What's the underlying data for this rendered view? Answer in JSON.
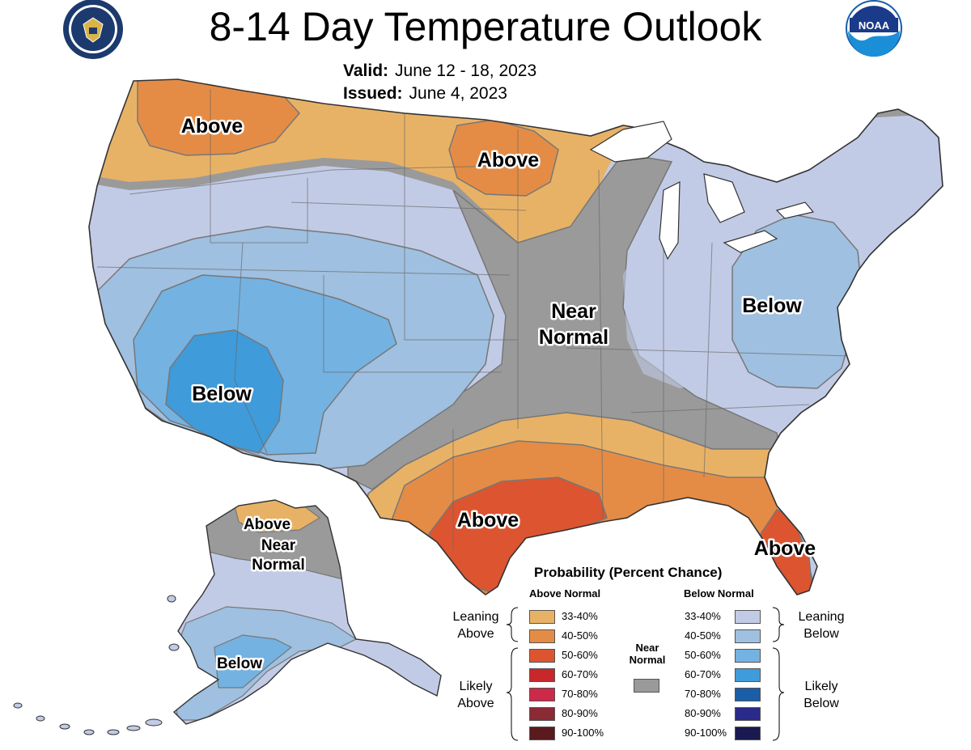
{
  "header": {
    "title": "8-14 Day Temperature Outlook",
    "valid_label": "Valid:",
    "valid_value": "June 12 - 18, 2023",
    "issued_label": "Issued:",
    "issued_value": "June 4, 2023"
  },
  "logos": {
    "left": "department-of-commerce-seal",
    "right_text": "NOAA"
  },
  "map_labels": {
    "nw_above": "Above",
    "mn_above": "Above",
    "near": "Near",
    "normal": "Normal",
    "east_below": "Below",
    "sw_below": "Below",
    "tx_above": "Above",
    "fl_above": "Above",
    "ak_above": "Above",
    "ak_near": "Near",
    "ak_normal": "Normal",
    "ak_below": "Below"
  },
  "legend": {
    "title": "Probability (Percent Chance)",
    "above_head": "Above Normal",
    "below_head": "Below Normal",
    "near_label_1": "Near",
    "near_label_2": "Normal",
    "leaning_above_1": "Leaning",
    "leaning_above_2": "Above",
    "likely_above_1": "Likely",
    "likely_above_2": "Above",
    "leaning_below_1": "Leaning",
    "leaning_below_2": "Below",
    "likely_below_1": "Likely",
    "likely_below_2": "Below",
    "above": [
      {
        "label": "33-40%",
        "color": "#e8b266"
      },
      {
        "label": "40-50%",
        "color": "#e48c46"
      },
      {
        "label": "50-60%",
        "color": "#dc5530"
      },
      {
        "label": "60-70%",
        "color": "#c8282a"
      },
      {
        "label": "70-80%",
        "color": "#cc2a48"
      },
      {
        "label": "80-90%",
        "color": "#8a2a34"
      },
      {
        "label": "90-100%",
        "color": "#5a1a1e"
      }
    ],
    "below": [
      {
        "label": "33-40%",
        "color": "#c2cbe6"
      },
      {
        "label": "40-50%",
        "color": "#9fc0e0"
      },
      {
        "label": "50-60%",
        "color": "#74b2e2"
      },
      {
        "label": "60-70%",
        "color": "#3f9bda"
      },
      {
        "label": "70-80%",
        "color": "#1a5ea8"
      },
      {
        "label": "80-90%",
        "color": "#2a2a8a"
      },
      {
        "label": "90-100%",
        "color": "#1a1a50"
      }
    ],
    "near_color": "#9a9a9a"
  }
}
